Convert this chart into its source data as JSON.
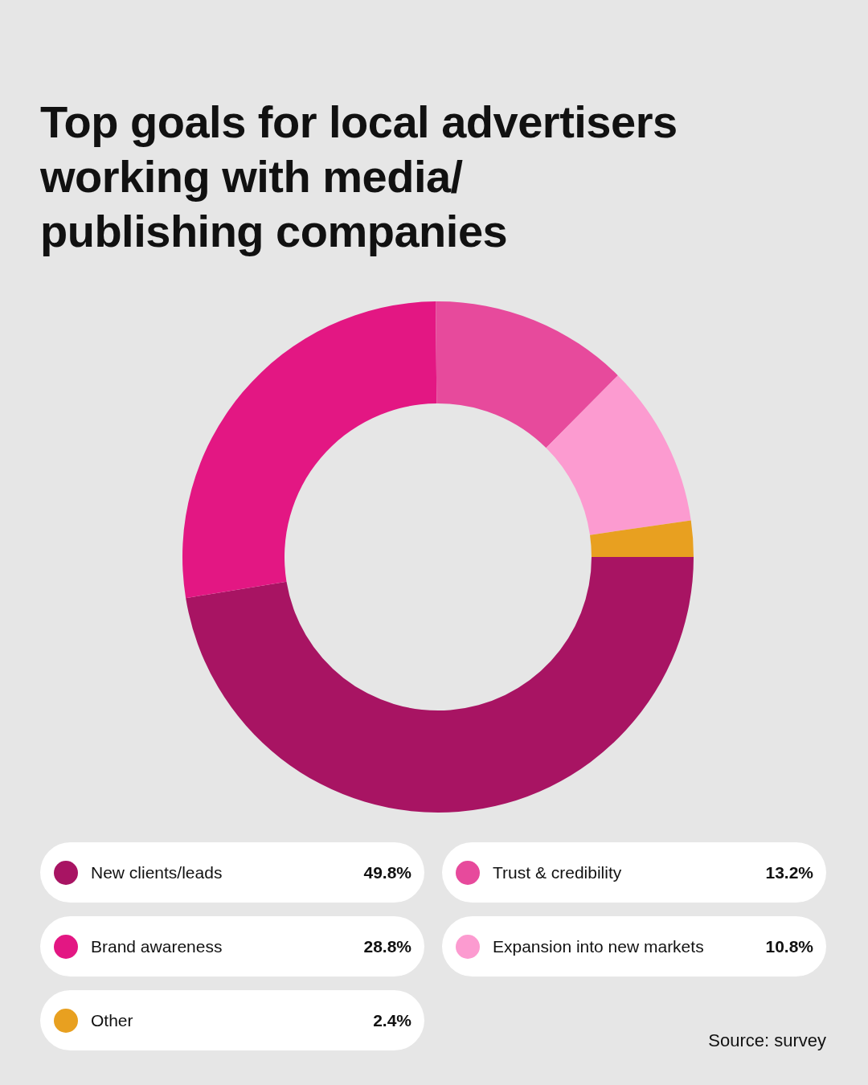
{
  "chart_data": {
    "type": "donut",
    "title": "Top goals for local advertisers working with media/publishing companies",
    "categories": [
      "New clients/leads",
      "Brand awareness",
      "Trust & credibility",
      "Expansion into new markets",
      "Other"
    ],
    "values": [
      49.8,
      28.8,
      13.2,
      10.8,
      2.4
    ],
    "value_labels": [
      "49.8%",
      "28.8%",
      "13.2%",
      "10.8%",
      "2.4%"
    ],
    "colors": [
      "#a81463",
      "#e31783",
      "#e74a9c",
      "#fc9bd0",
      "#e8a020"
    ],
    "legend": "bottom",
    "annotations": [
      "Source: survey"
    ]
  }
}
